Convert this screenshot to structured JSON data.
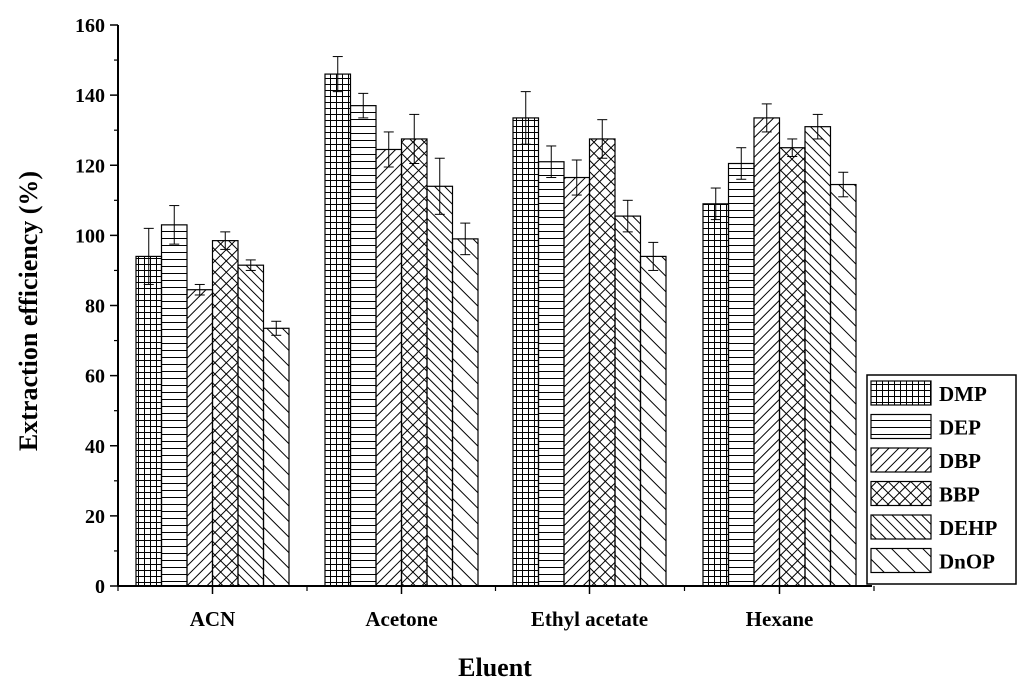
{
  "chart_data": {
    "type": "bar",
    "title": "",
    "xlabel": "Eluent",
    "ylabel": "Extraction efficiency (%)",
    "ylim": [
      0,
      160
    ],
    "yticks": [
      "0",
      "20",
      "40",
      "60",
      "80",
      "100",
      "120",
      "140",
      "160"
    ],
    "grid": false,
    "legend_position": "right-bottom",
    "error_bars": true,
    "categories": [
      "ACN",
      "Acetone",
      "Ethyl acetate",
      "Hexane"
    ],
    "series": [
      {
        "name": "DMP",
        "pattern": "grid",
        "values": [
          94,
          146,
          133.5,
          109
        ],
        "errors": [
          8,
          5,
          7.5,
          4.5
        ]
      },
      {
        "name": "DEP",
        "pattern": "horizontal",
        "values": [
          103,
          137,
          121,
          120.5
        ],
        "errors": [
          5.5,
          3.5,
          4.5,
          4.5
        ]
      },
      {
        "name": "DBP",
        "pattern": "diagonal-up",
        "values": [
          84.5,
          124.5,
          116.5,
          133.5
        ],
        "errors": [
          1.5,
          5,
          5,
          4
        ]
      },
      {
        "name": "BBP",
        "pattern": "crosshatch",
        "values": [
          98.5,
          127.5,
          127.5,
          125
        ],
        "errors": [
          2.5,
          7,
          5.5,
          2.5
        ]
      },
      {
        "name": "DEHP",
        "pattern": "diagonal-down",
        "values": [
          91.5,
          114,
          105.5,
          131
        ],
        "errors": [
          1.5,
          8,
          4.5,
          3.5
        ]
      },
      {
        "name": "DnOP",
        "pattern": "diagonal-down-wide",
        "values": [
          73.5,
          99,
          94,
          114.5
        ],
        "errors": [
          2,
          4.5,
          4,
          3.5
        ]
      }
    ],
    "colors": {
      "stroke": "#000000",
      "fill": "#ffffff"
    }
  }
}
